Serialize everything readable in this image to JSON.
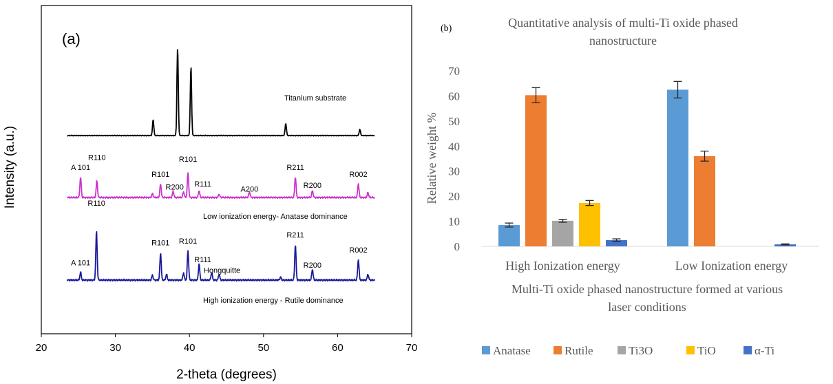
{
  "chart_data": [
    {
      "type": "line",
      "panel_label": "(a)",
      "xlabel": "2-theta (degrees)",
      "ylabel": "Intensity (a.u.)",
      "xlim": [
        20,
        70
      ],
      "xticks": [
        20,
        30,
        40,
        50,
        60,
        70
      ],
      "series": [
        {
          "name": "Titanium substrate",
          "color": "#000000",
          "peaks": [
            {
              "x": 35.1,
              "h": 0.18
            },
            {
              "x": 38.4,
              "h": 1.0
            },
            {
              "x": 40.2,
              "h": 0.78
            },
            {
              "x": 53.0,
              "h": 0.14
            },
            {
              "x": 63.0,
              "h": 0.07
            }
          ],
          "labels": []
        },
        {
          "name": "Low ionization energy- Anatase dominance",
          "color": "#cc33cc",
          "peaks": [
            {
              "x": 25.3,
              "h": 0.42
            },
            {
              "x": 27.5,
              "h": 0.34
            },
            {
              "x": 35.0,
              "h": 0.08
            },
            {
              "x": 36.1,
              "h": 0.28
            },
            {
              "x": 37.8,
              "h": 0.13
            },
            {
              "x": 39.2,
              "h": 0.12
            },
            {
              "x": 39.8,
              "h": 0.5
            },
            {
              "x": 41.3,
              "h": 0.14
            },
            {
              "x": 44.0,
              "h": 0.07
            },
            {
              "x": 48.1,
              "h": 0.12
            },
            {
              "x": 54.3,
              "h": 0.42
            },
            {
              "x": 56.6,
              "h": 0.14
            },
            {
              "x": 62.8,
              "h": 0.28
            },
            {
              "x": 64.1,
              "h": 0.1
            }
          ],
          "labels": [
            {
              "text": "A 101",
              "x": 25.3
            },
            {
              "text": "R110",
              "x": 27.5
            },
            {
              "text": "R101",
              "x": 36.1
            },
            {
              "text": "R200",
              "x": 38.0
            },
            {
              "text": "R101",
              "x": 39.8
            },
            {
              "text": "R111",
              "x": 41.8
            },
            {
              "text": "A200",
              "x": 48.1
            },
            {
              "text": "R211",
              "x": 54.3
            },
            {
              "text": "R200",
              "x": 56.6
            },
            {
              "text": "R002",
              "x": 62.8
            }
          ]
        },
        {
          "name": "High ionization energy - Rutile dominance",
          "color": "#1a1a99",
          "peaks": [
            {
              "x": 25.3,
              "h": 0.16
            },
            {
              "x": 27.45,
              "h": 1.0
            },
            {
              "x": 35.0,
              "h": 0.1
            },
            {
              "x": 36.1,
              "h": 0.56
            },
            {
              "x": 36.9,
              "h": 0.12
            },
            {
              "x": 39.2,
              "h": 0.15
            },
            {
              "x": 39.8,
              "h": 0.6
            },
            {
              "x": 41.3,
              "h": 0.33
            },
            {
              "x": 43.0,
              "h": 0.16
            },
            {
              "x": 44.0,
              "h": 0.12
            },
            {
              "x": 52.3,
              "h": 0.06
            },
            {
              "x": 54.3,
              "h": 0.72
            },
            {
              "x": 56.6,
              "h": 0.22
            },
            {
              "x": 62.8,
              "h": 0.42
            },
            {
              "x": 64.1,
              "h": 0.12
            }
          ],
          "labels": [
            {
              "text": "A 101",
              "x": 25.3
            },
            {
              "text": "R110",
              "x": 27.45
            },
            {
              "text": "R101",
              "x": 36.1
            },
            {
              "text": "R101",
              "x": 39.8
            },
            {
              "text": "R111",
              "x": 41.8
            },
            {
              "text": "Hongquitte",
              "x": 44.4
            },
            {
              "text": "R211",
              "x": 54.3
            },
            {
              "text": "R200",
              "x": 56.6
            },
            {
              "text": "R002",
              "x": 62.8
            }
          ]
        }
      ]
    },
    {
      "type": "bar",
      "panel_label": "(b)",
      "title": "Quantitative analysis of multi-Ti oxide phased nanostructure",
      "title_lines": [
        "Quantitative analysis of multi-Ti oxide phased",
        "nanostructure"
      ],
      "xlabel": "Multi-Ti oxide phased nanostructure formed at various laser conditions",
      "xlabel_lines": [
        "Multi-Ti oxide phased nanostructure formed at various",
        "laser conditions"
      ],
      "ylabel": "Relative weight %",
      "ylim": [
        0,
        70
      ],
      "yticks": [
        0,
        10,
        20,
        30,
        40,
        50,
        60,
        70
      ],
      "categories": [
        "High Ionization energy",
        "Low Ionization energy"
      ],
      "legend_position": "bottom",
      "series": [
        {
          "name": "Anatase",
          "color": "#5b9bd5",
          "values": [
            8.5,
            62.5
          ],
          "errors": [
            0.8,
            3.3
          ]
        },
        {
          "name": "Rutile",
          "color": "#ed7d31",
          "values": [
            60.3,
            36.0
          ],
          "errors": [
            3.0,
            2.0
          ]
        },
        {
          "name": "Ti3O",
          "color": "#a5a5a5",
          "values": [
            10.2,
            0
          ],
          "errors": [
            0.6,
            0
          ]
        },
        {
          "name": "TiO",
          "color": "#ffc000",
          "values": [
            17.3,
            0
          ],
          "errors": [
            1.0,
            0
          ]
        },
        {
          "name": "α-Ti",
          "color": "#4472c4",
          "values": [
            2.5,
            0.8
          ],
          "errors": [
            0.5,
            0.2
          ]
        }
      ]
    }
  ]
}
